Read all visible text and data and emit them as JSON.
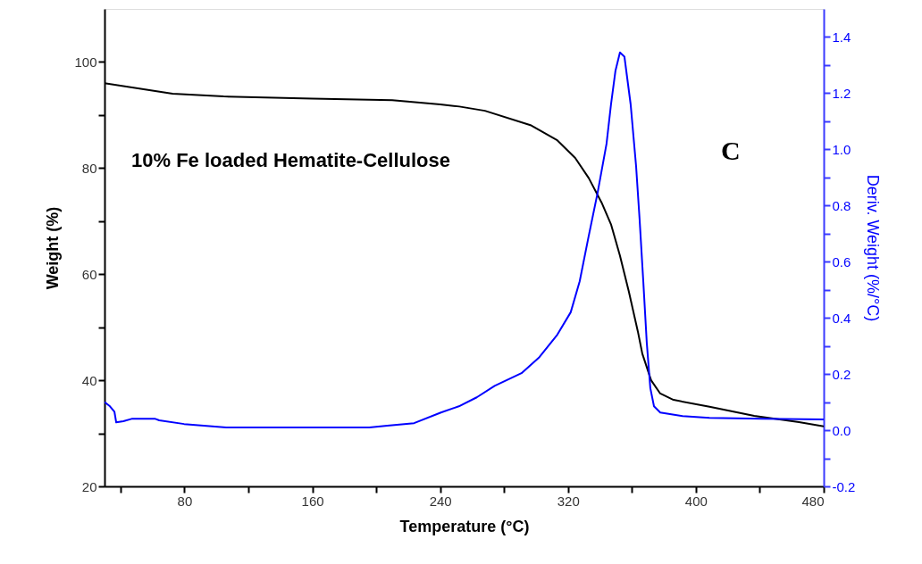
{
  "chart_data": {
    "type": "line",
    "xlabel": "Temperature (°C)",
    "ylabel": "Weight (%)",
    "y2label": "Deriv. Weight (%/°C)",
    "annotations": [
      "10% Fe loaded Hematite-Cellulose",
      "C"
    ],
    "xlim": [
      30,
      480
    ],
    "xticks": [
      {
        "value": 40,
        "label": null
      },
      80,
      {
        "value": 120,
        "label": null
      },
      160,
      {
        "value": 200,
        "label": null
      },
      240,
      {
        "value": 280,
        "label": null
      },
      320,
      {
        "value": 360,
        "label": null
      },
      400,
      {
        "value": 440,
        "label": null
      },
      480
    ],
    "ylim": [
      20,
      110
    ],
    "yticks": [
      20,
      {
        "value": 30,
        "label": null
      },
      40,
      {
        "value": 50,
        "label": null
      },
      60,
      {
        "value": 70,
        "label": null
      },
      80,
      {
        "value": 90,
        "label": null
      },
      100
    ],
    "y2lim": [
      -0.2,
      1.5
    ],
    "y2ticks": [
      -0.2,
      {
        "value": -0.1,
        "label": null
      },
      {
        "value": 0,
        "label": "0.0"
      },
      {
        "value": 0.1,
        "label": null
      },
      0.2,
      {
        "value": 0.3,
        "label": null
      },
      0.4,
      {
        "value": 0.5,
        "label": null
      },
      0.6,
      {
        "value": 0.7,
        "label": null
      },
      0.8,
      {
        "value": 0.9,
        "label": null
      },
      {
        "value": 1,
        "label": "1.0"
      },
      {
        "value": 1.1,
        "label": null
      },
      1.2,
      {
        "value": 1.3,
        "label": null
      },
      1.4
    ],
    "grid": false,
    "line_style": "solid",
    "series": [
      {
        "color": "#000000",
        "x": [
          30,
          72.6,
          104.5,
          160,
          210,
          240,
          252,
          268,
          296.5,
          313,
          324.5,
          333,
          341,
          347,
          352.5,
          358,
          363.7,
          366.5,
          372,
          377.7,
          386,
          408.5,
          436.5,
          464.5,
          480
        ],
        "values": [
          96.0,
          94.0,
          93.5,
          93.1,
          92.8,
          92.0,
          91.6,
          90.8,
          88.1,
          85.3,
          81.9,
          78.1,
          73.5,
          69.3,
          63.5,
          56.8,
          49.2,
          45.0,
          40.0,
          37.5,
          36.3,
          35.0,
          33.3,
          32.1,
          31.3
        ]
      },
      {
        "color": "#0000ff",
        "axis": "y2",
        "x": [
          30,
          33.4,
          36.2,
          37.3,
          41.8,
          47.4,
          61.4,
          64.2,
          79.8,
          106.1,
          160.5,
          195.7,
          206.9,
          223.7,
          240.5,
          251.7,
          262.9,
          274.1,
          290.9,
          302.1,
          313.3,
          321.7,
          327.3,
          332.9,
          338.5,
          344.1,
          346.9,
          349.7,
          352.5,
          355.3,
          359.2,
          362.6,
          364.8,
          367.1,
          369.3,
          371.5,
          373.8,
          377.7,
          391.7,
          408.5,
          442.1,
          480
        ],
        "values": [
          0.1,
          0.085,
          0.066,
          0.028,
          0.032,
          0.041,
          0.041,
          0.035,
          0.022,
          0.01,
          0.01,
          0.01,
          0.016,
          0.025,
          0.063,
          0.085,
          0.117,
          0.158,
          0.203,
          0.26,
          0.34,
          0.42,
          0.53,
          0.69,
          0.845,
          1.02,
          1.16,
          1.28,
          1.345,
          1.33,
          1.16,
          0.94,
          0.75,
          0.53,
          0.31,
          0.15,
          0.085,
          0.063,
          0.05,
          0.044,
          0.041,
          0.038
        ]
      }
    ]
  }
}
